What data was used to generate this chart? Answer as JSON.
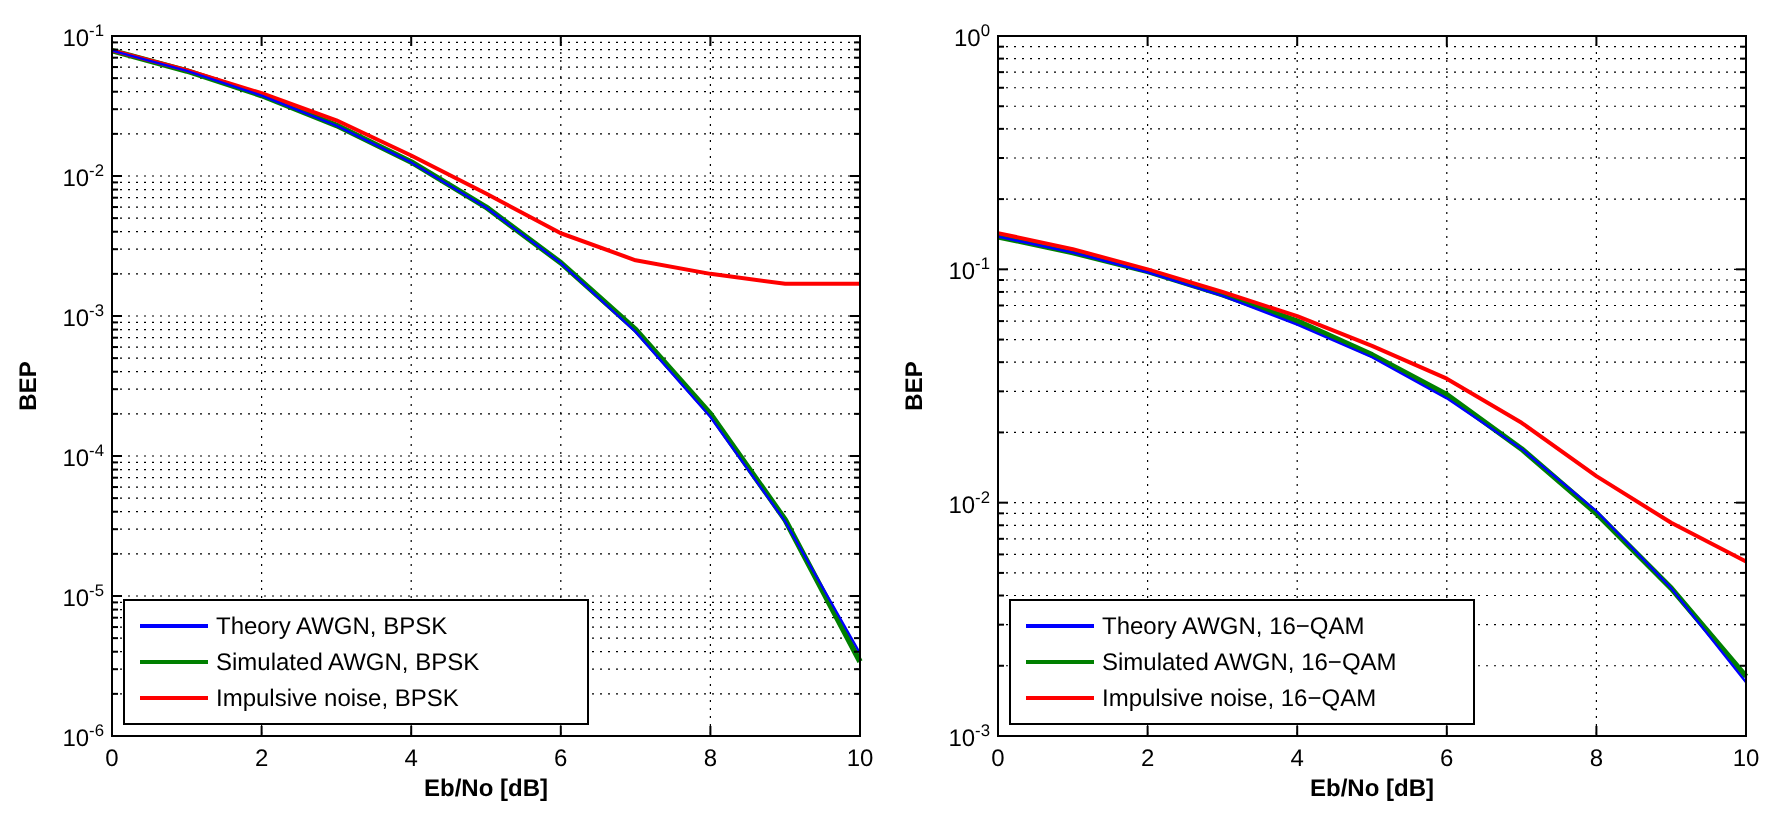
{
  "chart_data": [
    {
      "type": "line",
      "xlabel": "Eb/No [dB]",
      "ylabel": "BEP",
      "log": "y",
      "grid": true,
      "legend": "bottom left",
      "x": [
        0,
        1,
        2,
        3,
        4,
        5,
        6,
        7,
        8,
        9,
        10
      ],
      "xlim": [
        0,
        10
      ],
      "xticks": [
        0,
        2,
        4,
        6,
        8,
        10
      ],
      "ylim": [
        1e-06,
        0.1
      ],
      "yticks": [
        {
          "value": 1e-06,
          "label": "10$^{-6}$"
        },
        {
          "value": 1e-05,
          "label": "10$^{-5}$"
        },
        {
          "value": 0.0001,
          "label": "10$^{-4}$"
        },
        {
          "value": 0.001,
          "label": "10$^{-3}$"
        },
        {
          "value": 0.01,
          "label": "10$^{-2}$"
        },
        {
          "value": 0.1,
          "label": "10$^{-1}$"
        }
      ],
      "series": [
        {
          "name": "Theory AWGN, BPSK",
          "color": "#0000ff",
          "values": [
            0.0786,
            0.0563,
            0.0375,
            0.0229,
            0.0125,
            0.00595,
            0.00239,
            0.00077,
            0.00019,
            3.4e-05,
            3.9e-06
          ]
        },
        {
          "name": "Simulated AWGN, BPSK",
          "color": "#008000",
          "values": [
            0.0786,
            0.0563,
            0.0376,
            0.023,
            0.0126,
            0.006,
            0.0024,
            0.0008,
            0.0002,
            3.5e-05,
            3.4e-06
          ]
        },
        {
          "name": "Impulsive noise, BPSK",
          "color": "#ff0000",
          "values": [
            0.079,
            0.057,
            0.039,
            0.025,
            0.014,
            0.0075,
            0.0039,
            0.0025,
            0.002,
            0.0017,
            0.0017
          ]
        }
      ]
    },
    {
      "type": "line",
      "xlabel": "Eb/No [dB]",
      "ylabel": "BEP",
      "log": "y",
      "grid": true,
      "legend": "bottom left",
      "x": [
        0,
        1,
        2,
        3,
        4,
        5,
        6,
        7,
        8,
        9,
        10
      ],
      "xlim": [
        0,
        10
      ],
      "xticks": [
        0,
        2,
        4,
        6,
        8,
        10
      ],
      "ylim": [
        0.001,
        1
      ],
      "yticks": [
        {
          "value": 0.001,
          "label": "10$^{-3}$"
        },
        {
          "value": 0.01,
          "label": "10$^{-2}$"
        },
        {
          "value": 0.1,
          "label": "10$^{-1}$"
        },
        {
          "value": 1,
          "label": "10$^{0}$"
        }
      ],
      "series": [
        {
          "name": "Theory AWGN, 16−QAM",
          "color": "#0000ff",
          "values": [
            0.138,
            0.118,
            0.097,
            0.077,
            0.058,
            0.042,
            0.028,
            0.017,
            0.0092,
            0.0043,
            0.0017
          ]
        },
        {
          "name": "Simulated AWGN, 16−QAM",
          "color": "#008000",
          "values": [
            0.138,
            0.118,
            0.098,
            0.078,
            0.06,
            0.043,
            0.029,
            0.017,
            0.009,
            0.0043,
            0.0018
          ]
        },
        {
          "name": "Impulsive noise, 16−QAM",
          "color": "#ff0000",
          "values": [
            0.143,
            0.122,
            0.1,
            0.08,
            0.063,
            0.047,
            0.034,
            0.022,
            0.013,
            0.0082,
            0.0056
          ]
        }
      ]
    }
  ]
}
